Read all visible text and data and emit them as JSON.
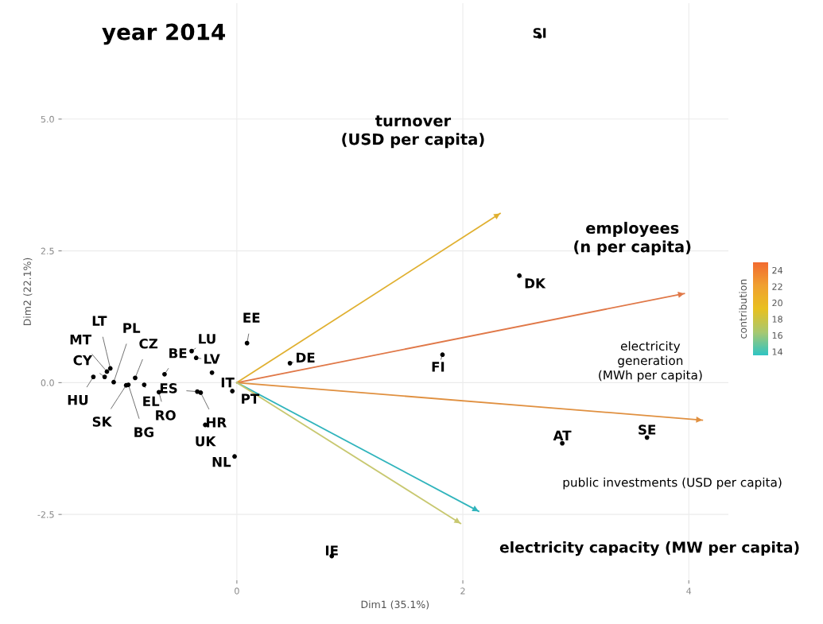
{
  "chart_data": {
    "type": "scatter",
    "title": "year 2014",
    "xlabel": "Dim1 (35.1%)",
    "ylabel": "Dim2 (22.1%)",
    "clabel": "contribution",
    "xlim": [
      -1.55,
      4.35
    ],
    "ylim": [
      -3.75,
      7.2
    ],
    "xticks": [
      0,
      2,
      4
    ],
    "yticks": [
      {
        "value": -2.5,
        "label": "-2.5"
      },
      {
        "value": 0,
        "label": "0.0"
      },
      {
        "value": 2.5,
        "label": "2.5"
      },
      {
        "value": 5,
        "label": "5.0"
      }
    ],
    "clim": [
      13.5,
      25
    ],
    "cticks": [
      14,
      16,
      18,
      20,
      22,
      24
    ],
    "grid": true,
    "marker": "circle",
    "line_style": "solid",
    "series": [
      {
        "color": "#000000",
        "x": [
          -1.27,
          -1.17,
          -1.15,
          -1.12,
          -1.09,
          -0.98,
          -0.96,
          -0.82,
          -0.9,
          -0.64,
          -0.69,
          -0.4,
          -0.36,
          -0.22,
          -0.35,
          -0.32,
          0.09,
          -0.28,
          -0.02,
          -0.04,
          0.47,
          1.82,
          2.5,
          2.68,
          2.88,
          3.63,
          0.84
        ],
        "values": [
          0.11,
          0.11,
          0.21,
          0.27,
          0.01,
          -0.05,
          -0.04,
          -0.04,
          0.09,
          0.16,
          -0.18,
          0.6,
          0.47,
          0.19,
          -0.17,
          -0.19,
          0.75,
          -0.8,
          -1.4,
          -0.16,
          0.37,
          0.53,
          2.03,
          6.57,
          -1.15,
          -1.04,
          -3.29
        ]
      },
      {
        "type": "line",
        "marker": "none",
        "color": "#e0b030",
        "x": [
          0,
          2.33
        ],
        "values": [
          0,
          3.21
        ]
      },
      {
        "type": "line",
        "marker": "none",
        "color": "#e07848",
        "x": [
          0,
          3.96
        ],
        "values": [
          0,
          1.69
        ]
      },
      {
        "type": "line",
        "marker": "none",
        "color": "#e09040",
        "x": [
          0,
          4.12
        ],
        "values": [
          0,
          -0.71
        ]
      },
      {
        "type": "line",
        "marker": "none",
        "color": "#30b4bc",
        "x": [
          0,
          2.14
        ],
        "values": [
          0,
          -2.44
        ]
      },
      {
        "type": "line",
        "marker": "none",
        "color": "#c8c870",
        "x": [
          0,
          1.98
        ],
        "values": [
          0,
          -2.67
        ]
      }
    ],
    "annotations": [
      {
        "text": "HU",
        "x": -1.27,
        "y": 0.11
      },
      {
        "text": "CY",
        "x": -1.17,
        "y": 0.11
      },
      {
        "text": "MT",
        "x": -1.15,
        "y": 0.21
      },
      {
        "text": "LT",
        "x": -1.12,
        "y": 0.27
      },
      {
        "text": "PL",
        "x": -1.09,
        "y": 0.01
      },
      {
        "text": "SK",
        "x": -0.98,
        "y": -0.05
      },
      {
        "text": "BG",
        "x": -0.96,
        "y": -0.04
      },
      {
        "text": "EL",
        "x": -0.82,
        "y": -0.04
      },
      {
        "text": "CZ",
        "x": -0.9,
        "y": 0.09
      },
      {
        "text": "BE",
        "x": -0.64,
        "y": 0.16
      },
      {
        "text": "RO",
        "x": -0.69,
        "y": -0.18
      },
      {
        "text": "LU",
        "x": -0.4,
        "y": 0.6
      },
      {
        "text": "LV",
        "x": -0.36,
        "y": 0.47
      },
      {
        "text": "IT",
        "x": -0.22,
        "y": 0.19
      },
      {
        "text": "ES",
        "x": -0.35,
        "y": -0.17
      },
      {
        "text": "HR",
        "x": -0.32,
        "y": -0.19
      },
      {
        "text": "EE",
        "x": 0.09,
        "y": 0.75
      },
      {
        "text": "UK",
        "x": -0.28,
        "y": -0.8
      },
      {
        "text": "NL",
        "x": -0.02,
        "y": -1.4
      },
      {
        "text": "PT",
        "x": -0.04,
        "y": -0.16
      },
      {
        "text": "DE",
        "x": 0.47,
        "y": 0.37
      },
      {
        "text": "FI",
        "x": 1.82,
        "y": 0.53
      },
      {
        "text": "DK",
        "x": 2.5,
        "y": 2.03
      },
      {
        "text": "SI",
        "x": 2.68,
        "y": 6.57
      },
      {
        "text": "AT",
        "x": 2.88,
        "y": -1.15
      },
      {
        "text": "SE",
        "x": 3.63,
        "y": -1.04
      },
      {
        "text": "IE",
        "x": 0.84,
        "y": -3.29
      },
      "turnover\n(USD per capita)",
      "employees\n(n per capita)",
      "electricity\ngeneration\n(MWh per capita)",
      "public investments (USD per capita)",
      "electricity capacity (MW per capita)"
    ]
  }
}
